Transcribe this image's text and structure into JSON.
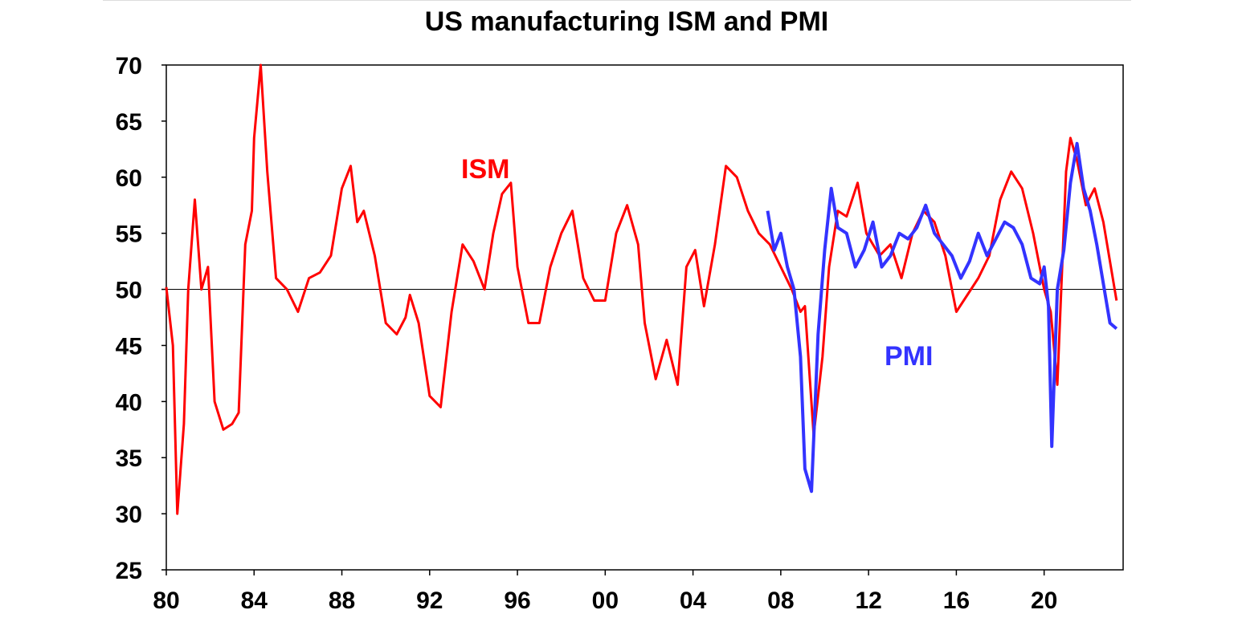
{
  "chart_data": {
    "type": "line",
    "title": "US manufacturing ISM and PMI",
    "xlabel": "",
    "ylabel": "",
    "xlim": [
      1980,
      2023.6
    ],
    "ylim": [
      25,
      70
    ],
    "reference_line": 50,
    "grid": false,
    "x_tick_labels": [
      "80",
      "84",
      "88",
      "92",
      "96",
      "00",
      "04",
      "08",
      "12",
      "16",
      "20"
    ],
    "x_tick_years": [
      1980,
      1984,
      1988,
      1992,
      1996,
      2000,
      2004,
      2008,
      2012,
      2016,
      2020
    ],
    "y_ticks": [
      25,
      30,
      35,
      40,
      45,
      50,
      55,
      60,
      65,
      70
    ],
    "series": [
      {
        "name": "ISM",
        "color": "#ff0000",
        "x": [
          1980.0,
          1980.3,
          1980.5,
          1980.8,
          1981.0,
          1981.3,
          1981.6,
          1981.9,
          1982.2,
          1982.6,
          1983.0,
          1983.3,
          1983.6,
          1983.9,
          1984.0,
          1984.3,
          1984.6,
          1985.0,
          1985.5,
          1986.0,
          1986.5,
          1987.0,
          1987.5,
          1988.0,
          1988.4,
          1988.7,
          1989.0,
          1989.5,
          1990.0,
          1990.5,
          1990.9,
          1991.1,
          1991.5,
          1992.0,
          1992.5,
          1993.0,
          1993.5,
          1994.0,
          1994.5,
          1994.9,
          1995.3,
          1995.7,
          1996.0,
          1996.5,
          1997.0,
          1997.5,
          1998.0,
          1998.5,
          1999.0,
          1999.5,
          2000.0,
          2000.5,
          2001.0,
          2001.5,
          2001.8,
          2002.3,
          2002.8,
          2003.3,
          2003.7,
          2004.1,
          2004.5,
          2005.0,
          2005.5,
          2006.0,
          2006.5,
          2007.0,
          2007.5,
          2008.0,
          2008.5,
          2008.9,
          2009.1,
          2009.5,
          2009.9,
          2010.2,
          2010.6,
          2011.0,
          2011.5,
          2011.9,
          2012.5,
          2013.0,
          2013.5,
          2014.0,
          2014.5,
          2015.0,
          2015.5,
          2016.0,
          2016.5,
          2017.0,
          2017.5,
          2018.0,
          2018.5,
          2019.0,
          2019.5,
          2020.0,
          2020.3,
          2020.6,
          2021.0,
          2021.2,
          2021.5,
          2021.9,
          2022.3,
          2022.7,
          2023.0,
          2023.3
        ],
        "values": [
          50.2,
          45.0,
          30.0,
          38.0,
          50.0,
          58.0,
          50.0,
          52.0,
          40.0,
          37.5,
          38.0,
          39.0,
          54.0,
          57.0,
          63.5,
          70.0,
          60.5,
          51.0,
          50.0,
          48.0,
          51.0,
          51.5,
          53.0,
          59.0,
          61.0,
          56.0,
          57.0,
          53.0,
          47.0,
          46.0,
          47.5,
          49.5,
          47.0,
          40.5,
          39.5,
          48.0,
          54.0,
          52.5,
          50.0,
          55.0,
          58.5,
          59.5,
          52.0,
          47.0,
          47.0,
          52.0,
          55.0,
          57.0,
          51.0,
          49.0,
          49.0,
          55.0,
          57.5,
          54.0,
          47.0,
          42.0,
          45.5,
          41.5,
          52.0,
          53.5,
          48.5,
          54.0,
          61.0,
          60.0,
          57.0,
          55.0,
          54.0,
          52.0,
          50.0,
          48.0,
          48.5,
          37.0,
          44.0,
          52.0,
          57.0,
          56.5,
          59.5,
          55.0,
          53.0,
          54.0,
          51.0,
          55.0,
          57.0,
          56.0,
          53.0,
          48.0,
          49.5,
          51.0,
          53.0,
          58.0,
          60.5,
          59.0,
          55.0,
          50.0,
          48.0,
          41.5,
          60.5,
          63.5,
          61.5,
          57.5,
          59.0,
          56.0,
          52.5,
          49.0
        ]
      },
      {
        "name": "PMI",
        "color": "#3333ff",
        "x": [
          2007.4,
          2007.7,
          2008.0,
          2008.3,
          2008.6,
          2008.9,
          2009.1,
          2009.4,
          2009.7,
          2010.0,
          2010.3,
          2010.6,
          2011.0,
          2011.4,
          2011.8,
          2012.2,
          2012.6,
          2013.0,
          2013.4,
          2013.8,
          2014.2,
          2014.6,
          2015.0,
          2015.4,
          2015.8,
          2016.2,
          2016.6,
          2017.0,
          2017.4,
          2017.8,
          2018.2,
          2018.6,
          2019.0,
          2019.4,
          2019.8,
          2020.0,
          2020.2,
          2020.35,
          2020.6,
          2020.9,
          2021.2,
          2021.5,
          2021.8,
          2022.1,
          2022.4,
          2022.7,
          2023.0,
          2023.3
        ],
        "values": [
          57.0,
          53.5,
          55.0,
          52.0,
          50.0,
          44.0,
          34.0,
          32.0,
          46.0,
          53.5,
          59.0,
          55.5,
          55.0,
          52.0,
          53.5,
          56.0,
          52.0,
          53.0,
          55.0,
          54.5,
          55.5,
          57.5,
          55.0,
          54.0,
          53.0,
          51.0,
          52.5,
          55.0,
          53.0,
          54.5,
          56.0,
          55.5,
          54.0,
          51.0,
          50.5,
          52.0,
          48.5,
          36.0,
          50.0,
          53.5,
          59.5,
          63.0,
          59.0,
          57.0,
          54.0,
          50.5,
          47.0,
          46.5
        ]
      }
    ],
    "annotations": [
      {
        "text": "ISM",
        "color": "#ff0000"
      },
      {
        "text": "PMI",
        "color": "#3333ff"
      }
    ]
  }
}
